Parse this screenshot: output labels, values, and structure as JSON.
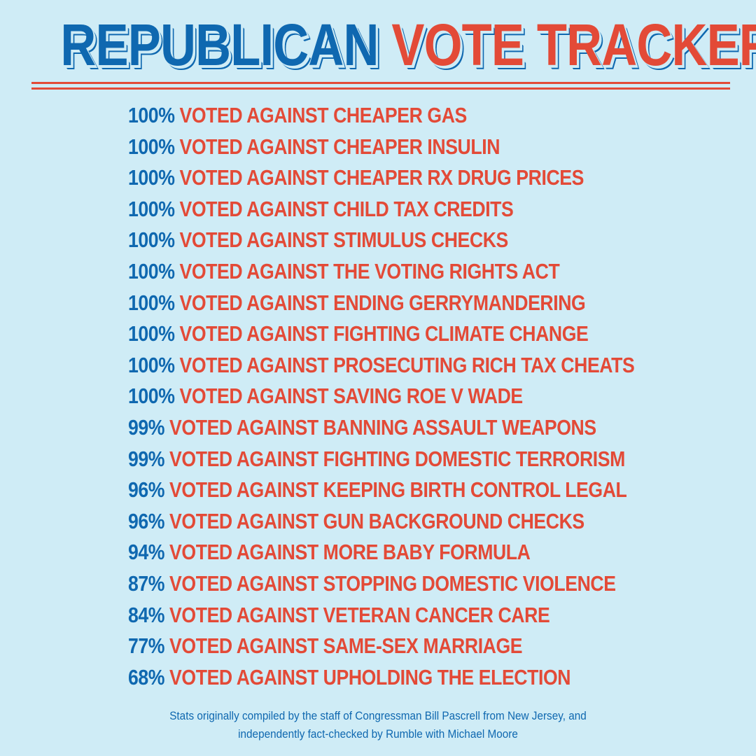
{
  "header": {
    "title_part1": "REPUBLICAN",
    "title_part2": "VOTE TRACKER"
  },
  "colors": {
    "background": "#cfecf6",
    "blue": "#0f68b0",
    "red": "#e34a37"
  },
  "items": [
    {
      "percent": "100%",
      "text": "VOTED AGAINST CHEAPER GAS"
    },
    {
      "percent": "100%",
      "text": "VOTED AGAINST CHEAPER INSULIN"
    },
    {
      "percent": "100%",
      "text": "VOTED AGAINST CHEAPER RX DRUG PRICES"
    },
    {
      "percent": "100%",
      "text": "VOTED AGAINST CHILD TAX CREDITS"
    },
    {
      "percent": "100%",
      "text": "VOTED AGAINST STIMULUS CHECKS"
    },
    {
      "percent": "100%",
      "text": "VOTED AGAINST THE VOTING RIGHTS ACT"
    },
    {
      "percent": "100%",
      "text": "VOTED AGAINST ENDING GERRYMANDERING"
    },
    {
      "percent": "100%",
      "text": "VOTED AGAINST FIGHTING CLIMATE CHANGE"
    },
    {
      "percent": "100%",
      "text": "VOTED AGAINST PROSECUTING RICH TAX CHEATS"
    },
    {
      "percent": "100%",
      "text": "VOTED AGAINST SAVING ROE V WADE"
    },
    {
      "percent": "99%",
      "text": "VOTED AGAINST BANNING ASSAULT WEAPONS"
    },
    {
      "percent": "99%",
      "text": "VOTED AGAINST FIGHTING DOMESTIC TERRORISM"
    },
    {
      "percent": "96%",
      "text": "VOTED AGAINST KEEPING BIRTH CONTROL LEGAL"
    },
    {
      "percent": "96%",
      "text": "VOTED AGAINST GUN BACKGROUND CHECKS"
    },
    {
      "percent": "94%",
      "text": "VOTED AGAINST MORE BABY FORMULA"
    },
    {
      "percent": "87%",
      "text": "VOTED AGAINST STOPPING DOMESTIC VIOLENCE"
    },
    {
      "percent": "84%",
      "text": "VOTED AGAINST VETERAN CANCER CARE"
    },
    {
      "percent": "77%",
      "text": "VOTED AGAINST SAME-SEX MARRIAGE"
    },
    {
      "percent": "68%",
      "text": "VOTED AGAINST UPHOLDING THE ELECTION"
    }
  ],
  "footer": {
    "line1": "Stats originally compiled by the staff of Congressman Bill Pascrell from New Jersey, and",
    "line2": "independently fact-checked by Rumble with Michael Moore"
  }
}
